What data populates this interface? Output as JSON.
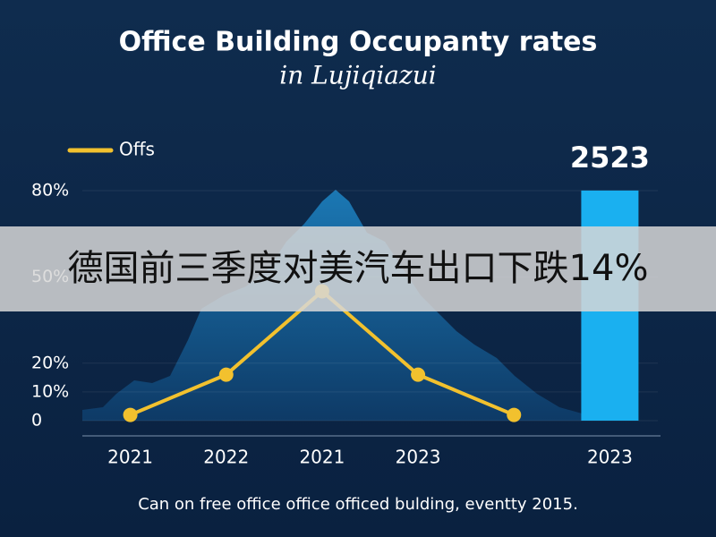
{
  "chart_data": {
    "type": "line",
    "title": "Office Building Occupanty rates",
    "subtitle": "in Lujiqiazui",
    "footnote": "Can on free office office officed bulding, eventty 2015.",
    "categories": [
      "2021",
      "2022",
      "2021",
      "2023",
      null,
      "2023"
    ],
    "series": [
      {
        "name": "Offs",
        "type": "line",
        "color": "#f2c12e",
        "values": [
          2,
          16,
          45,
          16,
          2,
          null
        ]
      },
      {
        "type": "bar",
        "axis": "y2",
        "color": "#1ab0f0",
        "values": [
          null,
          null,
          null,
          null,
          null,
          2523
        ]
      }
    ],
    "ylim": [
      0,
      80
    ],
    "yticks": [
      {
        "value": 0,
        "label": "0"
      },
      {
        "value": 10,
        "label": "10%"
      },
      {
        "value": 20,
        "label": "20%"
      },
      {
        "value": 50,
        "label": "50%"
      },
      {
        "value": 80,
        "label": "80%"
      }
    ],
    "y2lim": [
      0,
      2600
    ],
    "legend": "top-left"
  },
  "overlay_caption": "德国前三季度对美汽车出口下跌14%"
}
